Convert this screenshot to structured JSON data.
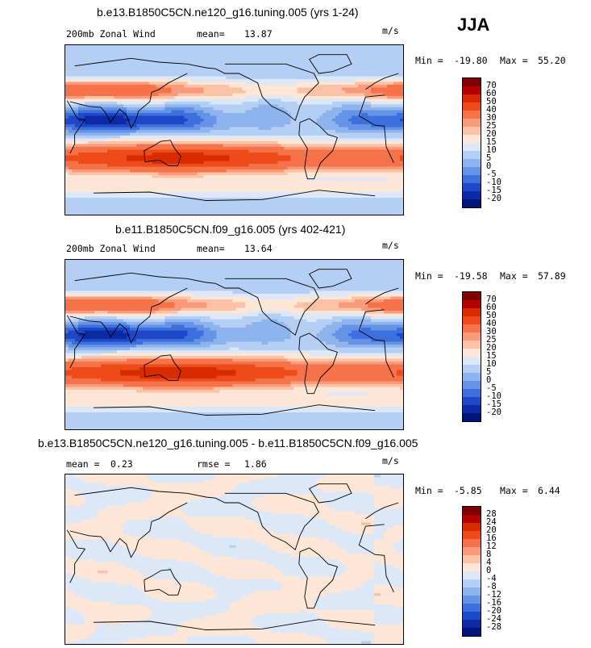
{
  "season": "JJA",
  "chart_data": [
    {
      "type": "heatmap",
      "title": "b.e13.B1850C5CN.ne120_g16.tuning.005 (yrs 1-24)",
      "variable": "200mb Zonal Wind",
      "stat1_label": "mean=",
      "stat1_value": "13.87",
      "units": "m/s",
      "min_label": "Min =",
      "min_value": "-19.80",
      "max_label": "Max =",
      "max_value": "55.20",
      "colorbar_levels": [
        "70",
        "60",
        "50",
        "40",
        "30",
        "25",
        "20",
        "15",
        "10",
        "5",
        "0",
        "-5",
        "-10",
        "-15",
        "-20"
      ],
      "colorbar_colors": [
        "#800000",
        "#b30000",
        "#d92b00",
        "#ef4a1a",
        "#f6734a",
        "#f99a7a",
        "#fcc2a6",
        "#fde6d6",
        "#dce8f8",
        "#b4cff3",
        "#8db4ec",
        "#6594e6",
        "#3d6fdd",
        "#1f48c8",
        "#0b2aa3",
        "#00137a"
      ],
      "jet_strength": 1.0
    },
    {
      "type": "heatmap",
      "title": "b.e11.B1850C5CN.f09_g16.005 (yrs 402-421)",
      "variable": "200mb Zonal Wind",
      "stat1_label": "mean=",
      "stat1_value": "13.64",
      "units": "m/s",
      "min_label": "Min =",
      "min_value": "-19.58",
      "max_label": "Max =",
      "max_value": "57.89",
      "colorbar_levels": [
        "70",
        "60",
        "50",
        "40",
        "30",
        "25",
        "20",
        "15",
        "10",
        "5",
        "0",
        "-5",
        "-10",
        "-15",
        "-20"
      ],
      "colorbar_colors": [
        "#800000",
        "#b30000",
        "#d92b00",
        "#ef4a1a",
        "#f6734a",
        "#f99a7a",
        "#fcc2a6",
        "#fde6d6",
        "#dce8f8",
        "#b4cff3",
        "#8db4ec",
        "#6594e6",
        "#3d6fdd",
        "#1f48c8",
        "#0b2aa3",
        "#00137a"
      ],
      "jet_strength": 1.02
    },
    {
      "type": "heatmap",
      "title": "b.e13.B1850C5CN.ne120_g16.tuning.005 - b.e11.B1850C5CN.f09_g16.005",
      "variable": "",
      "stat1_label": "mean =",
      "stat1_value": "0.23",
      "stat2_label": "rmse =",
      "stat2_value": "1.86",
      "units": "m/s",
      "min_label": "Min =",
      "min_value": "-5.85",
      "max_label": "Max =",
      "max_value": "6.44",
      "colorbar_levels": [
        "28",
        "24",
        "20",
        "16",
        "12",
        "8",
        "4",
        "0",
        "-4",
        "-8",
        "-12",
        "-16",
        "-20",
        "-24",
        "-28"
      ],
      "colorbar_colors": [
        "#800000",
        "#b30000",
        "#d92b00",
        "#ef4a1a",
        "#f6734a",
        "#f99a7a",
        "#fcc2a6",
        "#fde6d6",
        "#dce8f8",
        "#b4cff3",
        "#8db4ec",
        "#6594e6",
        "#3d6fdd",
        "#1f48c8",
        "#0b2aa3",
        "#00137a"
      ],
      "jet_strength": 0
    }
  ]
}
